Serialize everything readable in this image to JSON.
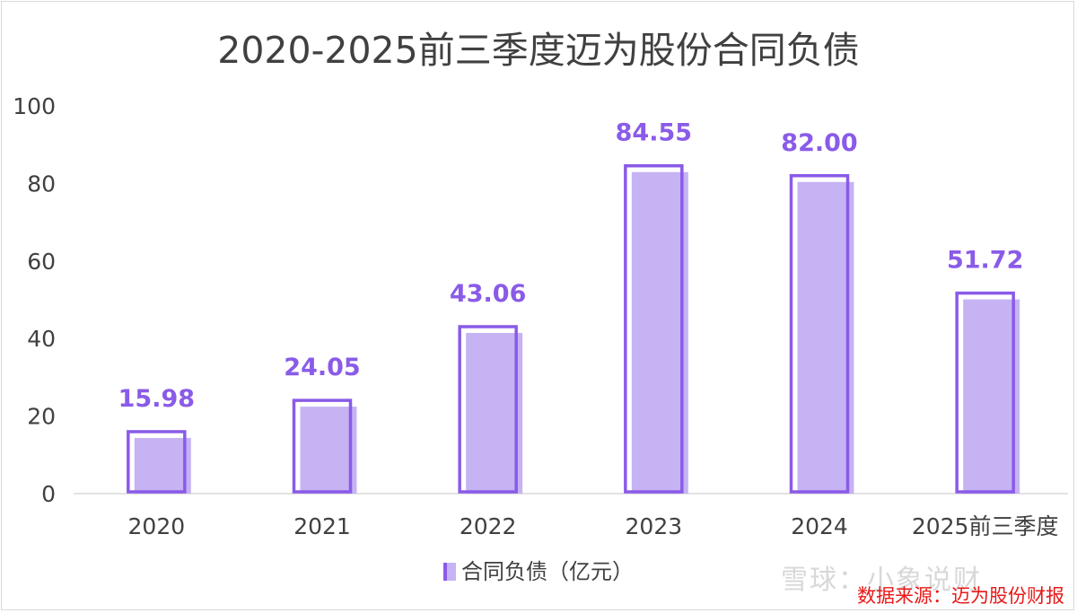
{
  "chart_data": {
    "type": "bar",
    "title": "2020-2025前三季度迈为股份合同负债",
    "categories": [
      "2020",
      "2021",
      "2022",
      "2023",
      "2024",
      "2025前三季度"
    ],
    "series": [
      {
        "name": "合同负债（亿元）",
        "values": [
          15.98,
          24.05,
          43.06,
          84.55,
          82.0,
          51.72
        ]
      }
    ],
    "data_labels": [
      "15.98",
      "24.05",
      "43.06",
      "84.55",
      "82.00",
      "51.72"
    ],
    "ylim": [
      0,
      100
    ],
    "yticks": [
      "0",
      "20",
      "40",
      "60",
      "80",
      "100"
    ],
    "xlabel": "",
    "ylabel": "",
    "grid": false,
    "legend_position": "bottom",
    "colors": {
      "fill": "#c5b3f4",
      "outline": "#8a5be8",
      "label": "#8a5be8",
      "axis": "#d9d9d9"
    }
  },
  "watermark": "雪球：小象说财",
  "source": "数据来源：迈为股份财报"
}
